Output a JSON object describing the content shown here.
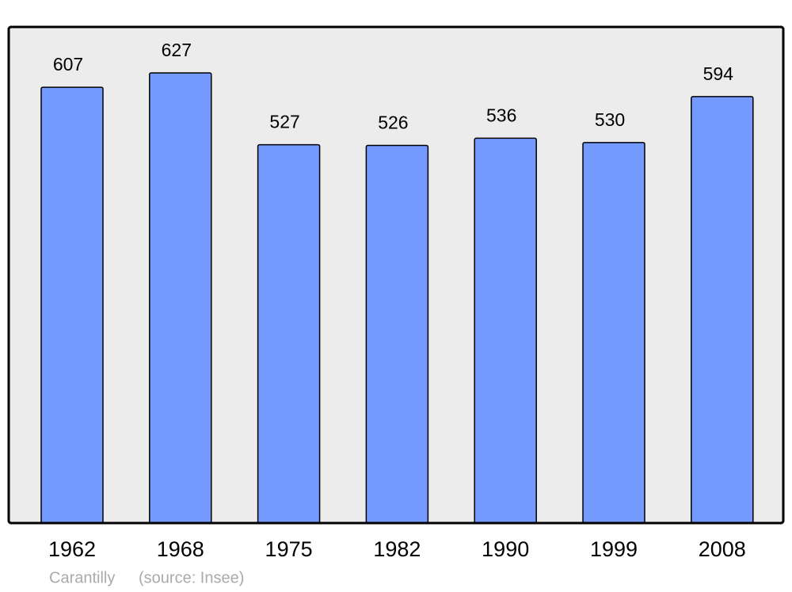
{
  "chart_data": {
    "type": "bar",
    "categories": [
      "1962",
      "1968",
      "1975",
      "1982",
      "1990",
      "1999",
      "2008"
    ],
    "values": [
      607,
      627,
      527,
      526,
      536,
      530,
      594
    ],
    "color": "#7499ff",
    "commune": "Carantilly",
    "source": "(source: Insee)"
  }
}
